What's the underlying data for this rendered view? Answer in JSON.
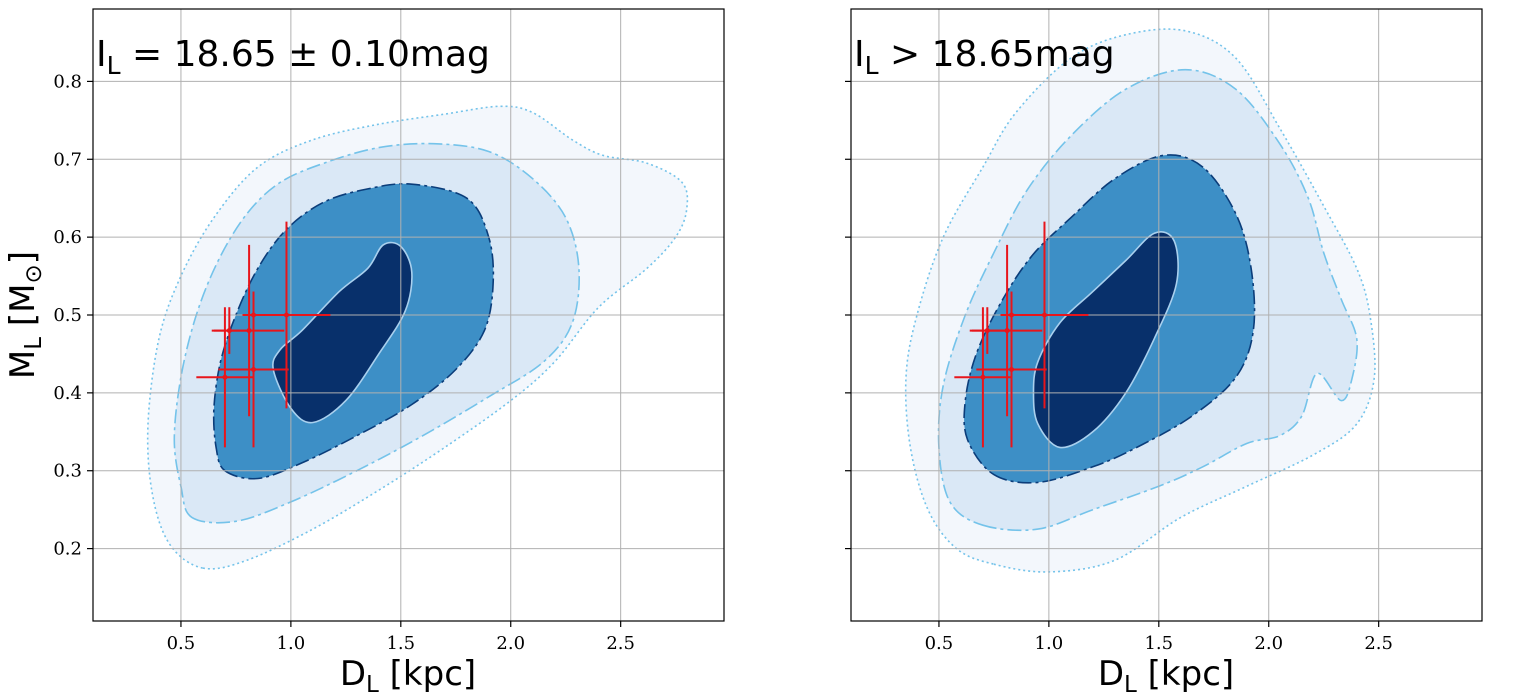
{
  "chart_data": [
    {
      "type": "contour",
      "annotation": {
        "main": "I",
        "sub": "L",
        "rest": " = 18.65 ± 0.10mag"
      },
      "xlabel": {
        "main": "D",
        "sub": "L",
        "rest": " [kpc]"
      },
      "ylabel": {
        "main": "M",
        "sub": "L",
        "rest": " [M",
        "sun": "⊙",
        "end": "]"
      },
      "xlim": [
        0.1,
        2.97
      ],
      "ylim": [
        0.107,
        0.893
      ],
      "xticks": [
        "0.5",
        "1.0",
        "1.5",
        "2.0",
        "2.5"
      ],
      "yticks": [
        "0.2",
        "0.3",
        "0.4",
        "0.5",
        "0.6",
        "0.7",
        "0.8"
      ],
      "grid": true,
      "contours": [
        {
          "level": "outer",
          "fill": "#f3f7fc",
          "stroke": "#74c3ea",
          "dash": "dotted",
          "points": [
            [
              0.6,
              0.175
            ],
            [
              0.8,
              0.185
            ],
            [
              1.1,
              0.225
            ],
            [
              1.4,
              0.275
            ],
            [
              1.7,
              0.33
            ],
            [
              2.0,
              0.39
            ],
            [
              2.2,
              0.44
            ],
            [
              2.4,
              0.51
            ],
            [
              2.62,
              0.56
            ],
            [
              2.75,
              0.6
            ],
            [
              2.8,
              0.635
            ],
            [
              2.78,
              0.67
            ],
            [
              2.62,
              0.695
            ],
            [
              2.42,
              0.705
            ],
            [
              2.28,
              0.725
            ],
            [
              2.1,
              0.76
            ],
            [
              1.95,
              0.768
            ],
            [
              1.7,
              0.758
            ],
            [
              1.4,
              0.745
            ],
            [
              1.1,
              0.725
            ],
            [
              0.85,
              0.69
            ],
            [
              0.65,
              0.625
            ],
            [
              0.5,
              0.55
            ],
            [
              0.4,
              0.47
            ],
            [
              0.35,
              0.36
            ],
            [
              0.37,
              0.27
            ],
            [
              0.45,
              0.205
            ]
          ]
        },
        {
          "level": "mid",
          "fill": "#dae8f6",
          "stroke": "#74c3ea",
          "dash": "dashdot",
          "points": [
            [
              0.55,
              0.24
            ],
            [
              0.75,
              0.235
            ],
            [
              1.0,
              0.26
            ],
            [
              1.3,
              0.3
            ],
            [
              1.6,
              0.345
            ],
            [
              1.9,
              0.395
            ],
            [
              2.15,
              0.44
            ],
            [
              2.28,
              0.49
            ],
            [
              2.31,
              0.56
            ],
            [
              2.25,
              0.625
            ],
            [
              2.1,
              0.675
            ],
            [
              1.9,
              0.71
            ],
            [
              1.65,
              0.72
            ],
            [
              1.4,
              0.715
            ],
            [
              1.15,
              0.695
            ],
            [
              0.95,
              0.67
            ],
            [
              0.8,
              0.63
            ],
            [
              0.67,
              0.57
            ],
            [
              0.57,
              0.5
            ],
            [
              0.5,
              0.42
            ],
            [
              0.47,
              0.34
            ],
            [
              0.5,
              0.28
            ]
          ]
        },
        {
          "level": "inner",
          "fill": "#3d8fc6",
          "stroke": "#0b3d7a",
          "dash": "dashdot",
          "points": [
            [
              0.7,
              0.3
            ],
            [
              0.85,
              0.29
            ],
            [
              1.05,
              0.31
            ],
            [
              1.3,
              0.345
            ],
            [
              1.55,
              0.385
            ],
            [
              1.75,
              0.43
            ],
            [
              1.88,
              0.48
            ],
            [
              1.92,
              0.54
            ],
            [
              1.9,
              0.6
            ],
            [
              1.8,
              0.65
            ],
            [
              1.55,
              0.668
            ],
            [
              1.35,
              0.662
            ],
            [
              1.15,
              0.645
            ],
            [
              0.98,
              0.61
            ],
            [
              0.85,
              0.56
            ],
            [
              0.75,
              0.5
            ],
            [
              0.68,
              0.44
            ],
            [
              0.65,
              0.38
            ],
            [
              0.66,
              0.33
            ]
          ]
        },
        {
          "level": "core",
          "fill": "#08306b",
          "stroke": "#a9d0ee",
          "dash": "solid",
          "points": [
            [
              0.92,
              0.43
            ],
            [
              1.0,
              0.38
            ],
            [
              1.1,
              0.362
            ],
            [
              1.25,
              0.39
            ],
            [
              1.4,
              0.45
            ],
            [
              1.52,
              0.505
            ],
            [
              1.55,
              0.555
            ],
            [
              1.5,
              0.588
            ],
            [
              1.42,
              0.59
            ],
            [
              1.35,
              0.56
            ],
            [
              1.22,
              0.53
            ],
            [
              1.05,
              0.48
            ],
            [
              0.95,
              0.455
            ]
          ]
        }
      ],
      "points": [
        {
          "x": 0.7,
          "y": 0.42,
          "xerr": [
            0.13,
            0.13
          ],
          "yerr": [
            0.09,
            0.09
          ]
        },
        {
          "x": 0.72,
          "y": 0.48,
          "xerr": [
            0.08,
            0.08
          ],
          "yerr": [
            0.03,
            0.03
          ]
        },
        {
          "x": 0.81,
          "y": 0.48,
          "xerr": [
            0.16,
            0.16
          ],
          "yerr": [
            0.11,
            0.11
          ]
        },
        {
          "x": 0.83,
          "y": 0.43,
          "xerr": [
            0.16,
            0.16
          ],
          "yerr": [
            0.1,
            0.1
          ]
        },
        {
          "x": 0.98,
          "y": 0.5,
          "xerr": [
            0.2,
            0.2
          ],
          "yerr": [
            0.12,
            0.12
          ]
        },
        {
          "x": 0.83,
          "y": 0.5,
          "xerr": [
            0.05,
            0.05
          ],
          "yerr": [
            0.03,
            0.03
          ]
        }
      ]
    },
    {
      "type": "contour",
      "annotation": {
        "main": "I",
        "sub": "L",
        "rest": " > 18.65mag"
      },
      "xlabel": {
        "main": "D",
        "sub": "L",
        "rest": " [kpc]"
      },
      "xlim": [
        0.1,
        2.97
      ],
      "ylim": [
        0.107,
        0.893
      ],
      "xticks": [
        "0.5",
        "1.0",
        "1.5",
        "2.0",
        "2.5"
      ],
      "yticks": [],
      "grid": true,
      "contours": [
        {
          "level": "outer",
          "fill": "#f3f7fc",
          "stroke": "#74c3ea",
          "dash": "dotted",
          "points": [
            [
              0.75,
              0.18
            ],
            [
              1.0,
              0.17
            ],
            [
              1.3,
              0.185
            ],
            [
              1.6,
              0.24
            ],
            [
              1.9,
              0.28
            ],
            [
              2.2,
              0.32
            ],
            [
              2.4,
              0.36
            ],
            [
              2.48,
              0.42
            ],
            [
              2.46,
              0.5
            ],
            [
              2.4,
              0.56
            ],
            [
              2.25,
              0.64
            ],
            [
              2.05,
              0.74
            ],
            [
              1.85,
              0.83
            ],
            [
              1.62,
              0.865
            ],
            [
              1.35,
              0.86
            ],
            [
              1.1,
              0.83
            ],
            [
              0.85,
              0.76
            ],
            [
              0.7,
              0.69
            ],
            [
              0.52,
              0.6
            ],
            [
              0.4,
              0.5
            ],
            [
              0.35,
              0.42
            ],
            [
              0.37,
              0.33
            ],
            [
              0.45,
              0.25
            ],
            [
              0.58,
              0.2
            ]
          ]
        },
        {
          "level": "mid",
          "fill": "#dae8f6",
          "stroke": "#74c3ea",
          "dash": "dashdot",
          "points": [
            [
              0.7,
              0.23
            ],
            [
              0.95,
              0.225
            ],
            [
              1.2,
              0.25
            ],
            [
              1.5,
              0.28
            ],
            [
              1.7,
              0.305
            ],
            [
              1.9,
              0.335
            ],
            [
              2.05,
              0.345
            ],
            [
              2.15,
              0.37
            ],
            [
              2.22,
              0.425
            ],
            [
              2.33,
              0.39
            ],
            [
              2.38,
              0.42
            ],
            [
              2.4,
              0.47
            ],
            [
              2.33,
              0.52
            ],
            [
              2.25,
              0.58
            ],
            [
              2.18,
              0.65
            ],
            [
              2.05,
              0.72
            ],
            [
              1.85,
              0.79
            ],
            [
              1.62,
              0.815
            ],
            [
              1.35,
              0.79
            ],
            [
              1.1,
              0.73
            ],
            [
              0.9,
              0.66
            ],
            [
              0.75,
              0.58
            ],
            [
              0.62,
              0.5
            ],
            [
              0.52,
              0.41
            ],
            [
              0.5,
              0.33
            ],
            [
              0.55,
              0.26
            ]
          ]
        },
        {
          "level": "inner",
          "fill": "#3d8fc6",
          "stroke": "#0b3d7a",
          "dash": "dashdot",
          "points": [
            [
              0.75,
              0.295
            ],
            [
              0.95,
              0.285
            ],
            [
              1.2,
              0.305
            ],
            [
              1.4,
              0.33
            ],
            [
              1.65,
              0.37
            ],
            [
              1.85,
              0.42
            ],
            [
              1.93,
              0.48
            ],
            [
              1.92,
              0.56
            ],
            [
              1.85,
              0.63
            ],
            [
              1.7,
              0.69
            ],
            [
              1.52,
              0.705
            ],
            [
              1.3,
              0.675
            ],
            [
              1.1,
              0.625
            ],
            [
              0.92,
              0.575
            ],
            [
              0.78,
              0.515
            ],
            [
              0.67,
              0.45
            ],
            [
              0.62,
              0.39
            ],
            [
              0.63,
              0.34
            ]
          ]
        },
        {
          "level": "core",
          "fill": "#08306b",
          "stroke": "#a9d0ee",
          "dash": "solid",
          "points": [
            [
              0.95,
              0.36
            ],
            [
              1.05,
              0.33
            ],
            [
              1.2,
              0.35
            ],
            [
              1.35,
              0.4
            ],
            [
              1.48,
              0.47
            ],
            [
              1.58,
              0.54
            ],
            [
              1.57,
              0.595
            ],
            [
              1.48,
              0.605
            ],
            [
              1.35,
              0.57
            ],
            [
              1.2,
              0.53
            ],
            [
              1.05,
              0.49
            ],
            [
              0.95,
              0.44
            ],
            [
              0.93,
              0.4
            ]
          ]
        }
      ],
      "points": [
        {
          "x": 0.7,
          "y": 0.42,
          "xerr": [
            0.13,
            0.13
          ],
          "yerr": [
            0.09,
            0.09
          ]
        },
        {
          "x": 0.72,
          "y": 0.48,
          "xerr": [
            0.08,
            0.08
          ],
          "yerr": [
            0.03,
            0.03
          ]
        },
        {
          "x": 0.81,
          "y": 0.48,
          "xerr": [
            0.16,
            0.16
          ],
          "yerr": [
            0.11,
            0.11
          ]
        },
        {
          "x": 0.83,
          "y": 0.43,
          "xerr": [
            0.16,
            0.16
          ],
          "yerr": [
            0.1,
            0.1
          ]
        },
        {
          "x": 0.98,
          "y": 0.5,
          "xerr": [
            0.2,
            0.2
          ],
          "yerr": [
            0.12,
            0.12
          ]
        },
        {
          "x": 0.83,
          "y": 0.5,
          "xerr": [
            0.05,
            0.05
          ],
          "yerr": [
            0.03,
            0.03
          ]
        }
      ]
    }
  ],
  "colors": {
    "grid": "#b0b0b0",
    "errorbar": "#e8151b",
    "axes": "#000000"
  }
}
